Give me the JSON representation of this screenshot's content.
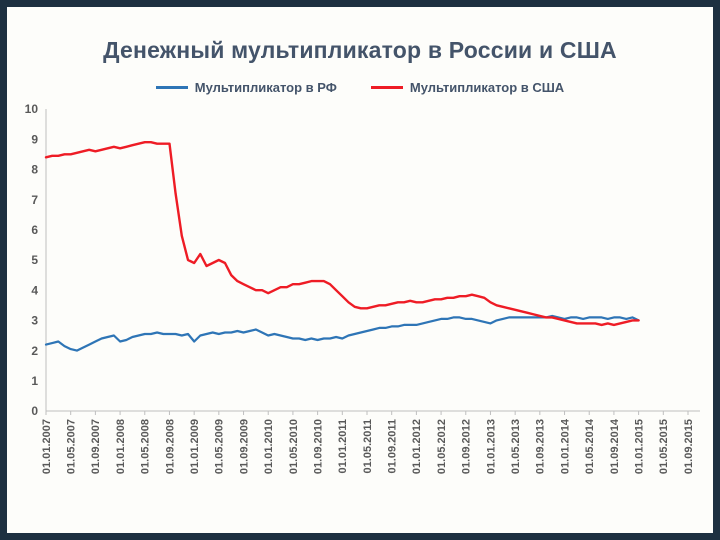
{
  "slide": {
    "title": "Денежный мультипликатор в России и США"
  },
  "chart_data": {
    "type": "line",
    "title": "Денежный мультипликатор в России и США",
    "xlabel": "",
    "ylabel": "",
    "ylim": [
      0,
      10
    ],
    "y_ticks": [
      0,
      1,
      2,
      3,
      4,
      5,
      6,
      7,
      8,
      9,
      10
    ],
    "grid": false,
    "legend_position": "top",
    "axis_color": "#BFBFBF",
    "tick_label_color": "#595959",
    "x_tick_interval_months": 4,
    "x_total_months": 104,
    "x_tick_labels": [
      "01.01.2007",
      "01.05.2007",
      "01.09.2007",
      "01.01.2008",
      "01.05.2008",
      "01.09.2008",
      "01.01.2009",
      "01.05.2009",
      "01.09.2009",
      "01.01.2010",
      "01.05.2010",
      "01.09.2010",
      "01.01.2011",
      "01.05.2011",
      "01.09.2011",
      "01.01.2012",
      "01.05.2012",
      "01.09.2012",
      "01.01.2013",
      "01.05.2013",
      "01.09.2013",
      "01.01.2014",
      "01.05.2014",
      "01.09.2014",
      "01.01.2015",
      "01.05.2015",
      "01.09.2015"
    ],
    "x_note": "monthly data points starting 01.01.2007, ending 01.01.2015",
    "series": [
      {
        "name": "Мультипликатор в РФ",
        "color": "#2E75B6",
        "width": 2.2,
        "start_month": 0,
        "values": [
          2.2,
          2.25,
          2.3,
          2.15,
          2.05,
          2.0,
          2.1,
          2.2,
          2.3,
          2.4,
          2.45,
          2.5,
          2.3,
          2.35,
          2.45,
          2.5,
          2.55,
          2.55,
          2.6,
          2.55,
          2.55,
          2.55,
          2.5,
          2.55,
          2.3,
          2.5,
          2.55,
          2.6,
          2.55,
          2.6,
          2.6,
          2.65,
          2.6,
          2.65,
          2.7,
          2.6,
          2.5,
          2.55,
          2.5,
          2.45,
          2.4,
          2.4,
          2.35,
          2.4,
          2.35,
          2.4,
          2.4,
          2.45,
          2.4,
          2.5,
          2.55,
          2.6,
          2.65,
          2.7,
          2.75,
          2.75,
          2.8,
          2.8,
          2.85,
          2.85,
          2.85,
          2.9,
          2.95,
          3.0,
          3.05,
          3.05,
          3.1,
          3.1,
          3.05,
          3.05,
          3.0,
          2.95,
          2.9,
          3.0,
          3.05,
          3.1,
          3.1,
          3.1,
          3.1,
          3.1,
          3.1,
          3.1,
          3.15,
          3.1,
          3.05,
          3.1,
          3.1,
          3.05,
          3.1,
          3.1,
          3.1,
          3.05,
          3.1,
          3.1,
          3.05,
          3.1,
          3.0
        ]
      },
      {
        "name": "Мультипликатор в США",
        "color": "#EE1C25",
        "width": 2.4,
        "start_month": 0,
        "values": [
          8.4,
          8.45,
          8.45,
          8.5,
          8.5,
          8.55,
          8.6,
          8.65,
          8.6,
          8.65,
          8.7,
          8.75,
          8.7,
          8.75,
          8.8,
          8.85,
          8.9,
          8.9,
          8.85,
          8.85,
          8.85,
          7.2,
          5.8,
          5.0,
          4.9,
          5.2,
          4.8,
          4.9,
          5.0,
          4.9,
          4.5,
          4.3,
          4.2,
          4.1,
          4.0,
          4.0,
          3.9,
          4.0,
          4.1,
          4.1,
          4.2,
          4.2,
          4.25,
          4.3,
          4.3,
          4.3,
          4.2,
          4.0,
          3.8,
          3.6,
          3.45,
          3.4,
          3.4,
          3.45,
          3.5,
          3.5,
          3.55,
          3.6,
          3.6,
          3.65,
          3.6,
          3.6,
          3.65,
          3.7,
          3.7,
          3.75,
          3.75,
          3.8,
          3.8,
          3.85,
          3.8,
          3.75,
          3.6,
          3.5,
          3.45,
          3.4,
          3.35,
          3.3,
          3.25,
          3.2,
          3.15,
          3.1,
          3.1,
          3.05,
          3.0,
          2.95,
          2.9,
          2.9,
          2.9,
          2.9,
          2.85,
          2.9,
          2.85,
          2.9,
          2.95,
          3.0,
          3.0
        ]
      }
    ]
  }
}
